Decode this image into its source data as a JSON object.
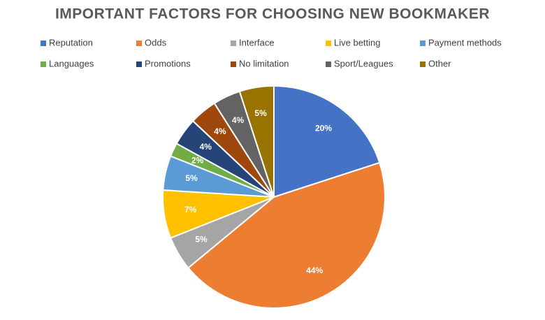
{
  "chart_data": {
    "type": "pie",
    "title": "IMPORTANT FACTORS FOR CHOOSING NEW BOOKMAKER",
    "categories": [
      "Reputation",
      "Odds",
      "Interface",
      "Live betting",
      "Payment methods",
      "Languages",
      "Promotions",
      "No limitation",
      "Sport/Leagues",
      "Other"
    ],
    "values": [
      20,
      44,
      5,
      7,
      5,
      2,
      4,
      4,
      4,
      5
    ],
    "value_labels": [
      "20%",
      "44%",
      "5%",
      "7%",
      "5%",
      "2%",
      "4%",
      "4%",
      "4%",
      "5%"
    ],
    "colors": [
      "#4472c4",
      "#ed7d31",
      "#a5a5a5",
      "#ffc000",
      "#5b9bd5",
      "#70ad47",
      "#264478",
      "#9e480e",
      "#636363",
      "#997300"
    ]
  }
}
